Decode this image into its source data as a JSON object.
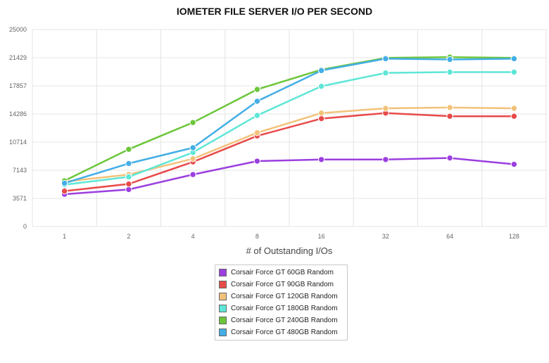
{
  "chart_data": {
    "type": "line",
    "title": "IOMETER FILE SERVER I/O PER SECOND",
    "xlabel": "# of Outstanding I/Os",
    "ylabel": "",
    "categories": [
      "1",
      "2",
      "4",
      "8",
      "16",
      "32",
      "64",
      "128"
    ],
    "yticks": [
      "0",
      "3571",
      "7143",
      "10714",
      "14286",
      "17857",
      "21429",
      "25000"
    ],
    "ylim": [
      0,
      25000
    ],
    "grid": true,
    "legend_position": "bottom",
    "series": [
      {
        "name": "Corsair Force GT 60GB Random",
        "color": "#9b3fe0",
        "values": [
          4100,
          4700,
          6600,
          8300,
          8500,
          8500,
          8700,
          7900
        ]
      },
      {
        "name": "Corsair Force GT 90GB Random",
        "color": "#e84a4a",
        "values": [
          4500,
          5400,
          8200,
          11500,
          13700,
          14400,
          14000,
          14000
        ]
      },
      {
        "name": "Corsair Force GT 120GB Random",
        "color": "#f2c27a",
        "values": [
          5700,
          6600,
          8600,
          11900,
          14400,
          15000,
          15100,
          15000
        ]
      },
      {
        "name": "Corsair Force GT 180GB Random",
        "color": "#5ee6d6",
        "values": [
          5300,
          6300,
          9400,
          14100,
          17800,
          19500,
          19600,
          19600
        ]
      },
      {
        "name": "Corsair Force GT 240GB Random",
        "color": "#6cc63a",
        "values": [
          5800,
          9800,
          13200,
          17400,
          19900,
          21400,
          21500,
          21400
        ]
      },
      {
        "name": "Corsair Force GT 480GB Random",
        "color": "#43aee6",
        "values": [
          5500,
          8000,
          10000,
          15900,
          19800,
          21300,
          21200,
          21300
        ]
      }
    ]
  }
}
